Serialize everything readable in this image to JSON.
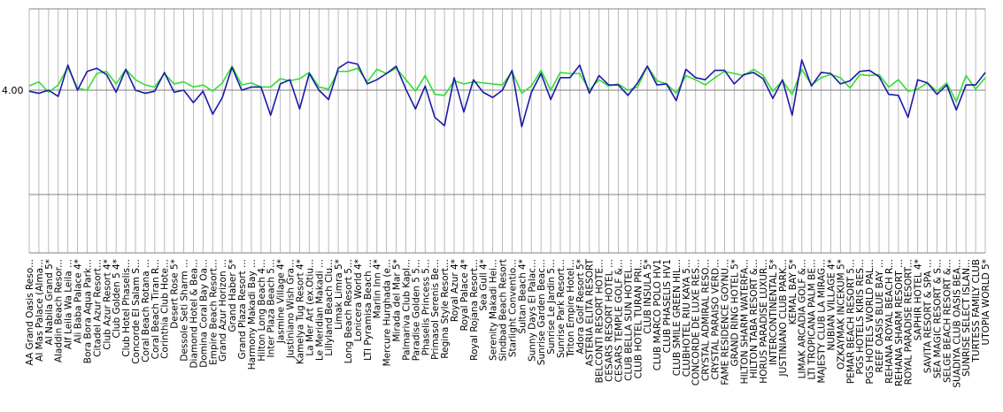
{
  "chart_data": {
    "type": "line",
    "title": "",
    "xlabel": "",
    "ylabel": "",
    "ylim": [
      3.0,
      4.7
    ],
    "y_ticks": [
      {
        "value": 4.0,
        "label": "4.00"
      }
    ],
    "grid": {
      "vertical": true,
      "horizontal": true
    },
    "legend": "none",
    "categories": [
      "AA Grand Oasis Reso...",
      "Al Mas Palace (Alma...",
      "Al Nabila Grand 5*",
      "Aladdin Beach Resor...",
      "Alf Leila Wa Leila ...",
      "Ali Baba Palace 4*",
      "Bora Bora Aqua Park...",
      "Citadel Azur Resort...",
      "Club Azur Resort 4*",
      "Club Golden 5 4*",
      "Club Hotel Phaselis...",
      "Concorde El Salam S...",
      "Coral Beach Rotana ...",
      "Coral Beach Tiran R...",
      "Corinthia Club Hote...",
      "Desert Rose 5*",
      "Dessole Seti Sharm ...",
      "Diamond Hotel & Bea...",
      "Domina Coral Bay Oa...",
      "Empire Beach Resort...",
      "Grand Azur Horizon ...",
      "Grand Haber 5*",
      "Grand Plaza Resort ...",
      "Harmony Makadi Bay ...",
      "Hilton Long Beach 4...",
      "Inter Plaza Beach 5...",
      "Jasmine Village 4*",
      "Justiniano Wish Gra...",
      "Kamelya Tug Resort 4*",
      "La Mer Art (ex.Otiu...",
      "Le Meridian Makadi ...",
      "Lillyland Beach Clu...",
      "Limak Limra 5*",
      "Long Beach Resort 5...",
      "Lonicera World 4*",
      "LTI Pyramisa Beach ...",
      "Marlin Inn 4*",
      "Mercure Hurghada (e...",
      "Mirada del Mar 5*",
      "Palmariva Club Kapl...",
      "Paradise Golden 5 5...",
      "Phaselis Princess 5...",
      "Primasol Serenis Be...",
      "Regina Style Resort...",
      "Royal Azur 4*",
      "Royal Palace 4*",
      "Royal Rojana Resort...",
      "Sea Gull 4*",
      "Serenity Makadi Hei...",
      "Sindbad Beach Resort",
      "Starlight Conventio...",
      "Sultan Beach 4*",
      "Sunny Days El Palac...",
      "Sunrise Garden Beac...",
      "Sunrise Le Jardin 5...",
      "Sunrise Park Resort...",
      "Triton Empire Hotel...",
      "Adora Golf Resort 5*",
      "ASTERIA ELITA RESORT",
      "BELCONTI RESORT HOTE...",
      "CESARS RESORT HOTEL ...",
      "CESARS TEMPLE GOLF &...",
      "CLUB BELLA SUN HOTEL...",
      "CLUB HOTEL TURAN PRI...",
      "CLUB INSULA 5*",
      "CLUB MARCO POLO HV1",
      "CLUB PHASELIS HV1",
      "CLUB SMILE GREEN HIL...",
      "CLUBHOTEL RIU KAYA 5...",
      "CONCORDE DE LUXE RES...",
      "CRYSTAL ADMIRAL RESO...",
      "CRYSTAL PARAISO VERD...",
      "FAME RESIDENCE GOYNU...",
      "GRAND RING HOTEL 5*",
      "HILTON SHARM WATERFA...",
      "HILTON TABA RESORT &...",
      "HORUS PARADISE LUXUR...",
      "INTERCONTINENTAL 5*",
      "JUSTINIANO CLUB PARK...",
      "KEMAL BAY 5*",
      "LIMAK ARCADIA GOLF &...",
      "LTI TROPICANA PALM BE...",
      "MAJESTY CLUB LA MIRAG...",
      "NUBIAN VILLAGE 4*",
      "OZKAYMAK INCEKUM 5*",
      "PEMAR BEACH RESORT 5...",
      "PGS HOTELS KIRIS RES...",
      "PGS HOTELS WORLD PAL...",
      "REEF OASIS BLUE BAY ...",
      "REHANA ROYAL BEACH R...",
      "REHANA SHARM RESORT ...",
      "ROYAL PARADISE RESORT...",
      "SAPHIR HOTEL 4*",
      "SAVITA RESORT & SPA ...",
      "SEA MAGIC RESORT & S...",
      "SELGE BEACH RESORT &...",
      "SUADIYA CLUB OASIS BEA...",
      "SUNRISE SELECT ISLAN...",
      "TURTESS FAMILY CLUB ",
      "UTOPIA WORLD 5*"
    ],
    "series": [
      {
        "color": "#33dd33",
        "values": [
          4.04,
          4.08,
          3.98,
          4.05,
          4.22,
          4.02,
          4.0,
          4.16,
          4.18,
          4.06,
          4.2,
          4.1,
          4.05,
          4.03,
          4.16,
          4.06,
          4.08,
          4.03,
          4.05,
          3.99,
          4.07,
          4.23,
          4.05,
          4.07,
          4.03,
          4.03,
          4.11,
          4.09,
          4.11,
          4.17,
          4.03,
          4.01,
          4.18,
          4.18,
          4.21,
          4.08,
          4.2,
          4.16,
          4.21,
          4.1,
          3.99,
          4.14,
          3.96,
          3.95,
          4.09,
          4.06,
          4.08,
          4.07,
          4.06,
          4.05,
          4.18,
          3.97,
          4.04,
          4.19,
          4.0,
          4.17,
          4.16,
          4.16,
          4.0,
          4.1,
          4.04,
          4.06,
          4.0,
          4.03,
          4.23,
          4.09,
          4.06,
          3.97,
          4.14,
          4.1,
          4.05,
          4.12,
          4.18,
          4.16,
          4.14,
          4.2,
          4.14,
          3.99,
          4.09,
          3.96,
          4.2,
          4.05,
          4.12,
          4.15,
          4.12,
          4.02,
          4.15,
          4.14,
          4.15,
          4.03,
          4.1,
          3.99,
          4.01,
          4.07,
          3.99,
          4.07,
          3.89,
          4.14,
          4.01,
          4.12
        ]
      },
      {
        "color": "#1a1aaa",
        "values": [
          3.99,
          3.97,
          4.0,
          3.94,
          4.24,
          4.0,
          4.18,
          4.21,
          4.15,
          3.98,
          4.2,
          4.0,
          3.97,
          3.99,
          4.17,
          3.98,
          4.0,
          3.88,
          3.99,
          3.77,
          3.93,
          4.22,
          4.0,
          4.03,
          4.03,
          3.76,
          4.06,
          4.1,
          3.82,
          4.16,
          4.0,
          3.91,
          4.21,
          4.27,
          4.25,
          4.06,
          4.1,
          4.16,
          4.23,
          4.01,
          3.82,
          4.04,
          3.74,
          3.66,
          4.12,
          3.79,
          4.1,
          3.98,
          3.93,
          4.0,
          4.19,
          3.65,
          3.98,
          4.16,
          3.91,
          4.12,
          4.12,
          4.24,
          3.97,
          4.14,
          4.05,
          4.05,
          3.95,
          4.07,
          4.23,
          4.05,
          4.06,
          3.9,
          4.2,
          4.12,
          4.1,
          4.19,
          4.19,
          4.06,
          4.15,
          4.17,
          4.11,
          3.92,
          4.1,
          3.76,
          4.29,
          4.04,
          4.17,
          4.16,
          4.06,
          4.09,
          4.18,
          4.19,
          4.13,
          3.96,
          3.95,
          3.74,
          4.1,
          4.07,
          3.96,
          4.05,
          3.81,
          4.05,
          4.05,
          4.17
        ]
      }
    ]
  }
}
